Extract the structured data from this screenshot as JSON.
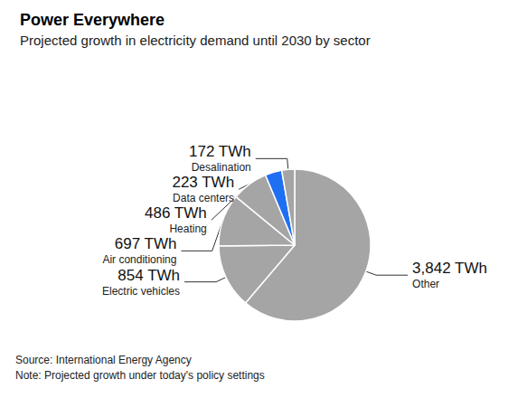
{
  "chart_data": {
    "type": "pie",
    "title": "Power Everywhere",
    "subtitle": "Projected growth in electricity demand until 2030 by sector",
    "categories": [
      "Other",
      "Electric vehicles",
      "Air conditioning",
      "Heating",
      "Data centers",
      "Desalination"
    ],
    "values": [
      3842,
      854,
      697,
      486,
      223,
      172
    ],
    "value_labels": [
      "3,842 TWh",
      "854 TWh",
      "697 TWh",
      "486 TWh",
      "223 TWh",
      "172 TWh"
    ],
    "colors": [
      "#a5a5a5",
      "#a5a5a5",
      "#a5a5a5",
      "#a5a5a5",
      "#1f6ff2",
      "#a5a5a5"
    ],
    "data_labels": true,
    "source": "Source: International Energy Agency",
    "note": "Note: Projected growth under today's policy settings"
  }
}
